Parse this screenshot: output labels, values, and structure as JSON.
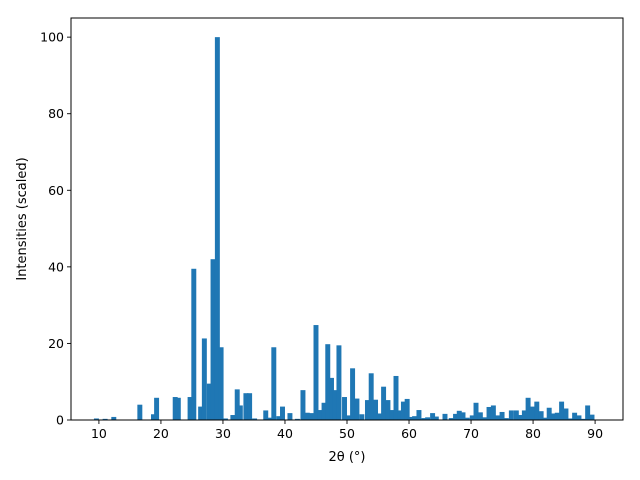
{
  "chart_data": {
    "type": "bar",
    "xlabel": "2θ (°)",
    "ylabel": "Intensities (scaled)",
    "xlim": [
      5.5,
      94.5
    ],
    "ylim": [
      0,
      105
    ],
    "xticks": [
      10,
      20,
      30,
      40,
      50,
      60,
      70,
      80,
      90
    ],
    "xtick_labels": [
      "10",
      "20",
      "30",
      "40",
      "50",
      "60",
      "70",
      "80",
      "90"
    ],
    "yticks": [
      0,
      20,
      40,
      60,
      80,
      100
    ],
    "ytick_labels": [
      "0",
      "20",
      "40",
      "60",
      "80",
      "100"
    ],
    "bar_width": 0.8,
    "bar_color": "#1f77b4",
    "grid": false,
    "series": [
      {
        "x": [
          9.6,
          11.0,
          12.4,
          16.6,
          18.8,
          19.3,
          22.3,
          22.8,
          24.7,
          25.3,
          26.4,
          27.0,
          27.8,
          28.4,
          29.1,
          29.7,
          30.4,
          31.6,
          32.3,
          32.8,
          33.7,
          34.3,
          35.1,
          36.9,
          37.6,
          38.2,
          39.0,
          39.6,
          40.8,
          42.0,
          42.9,
          43.6,
          44.2,
          45.0,
          45.6,
          46.3,
          46.9,
          47.5,
          48.1,
          48.7,
          49.6,
          50.4,
          50.9,
          51.6,
          52.4,
          53.3,
          53.9,
          54.6,
          55.2,
          55.9,
          56.6,
          57.3,
          57.9,
          58.5,
          59.1,
          59.7,
          60.2,
          60.9,
          61.6,
          62.4,
          63.0,
          63.8,
          64.4,
          65.8,
          66.8,
          67.5,
          68.1,
          68.7,
          69.4,
          70.2,
          70.8,
          71.5,
          72.2,
          72.9,
          73.6,
          74.3,
          75.0,
          75.7,
          76.5,
          77.3,
          77.9,
          78.6,
          79.2,
          79.9,
          80.6,
          81.3,
          81.9,
          82.6,
          83.3,
          83.9,
          84.6,
          85.3,
          86.0,
          86.7,
          87.4,
          88.1,
          88.8,
          89.5
        ],
        "values": [
          0.4,
          0.3,
          0.8,
          4.0,
          1.5,
          5.8,
          6.0,
          5.8,
          6.0,
          39.5,
          3.5,
          21.3,
          9.5,
          42.0,
          100.0,
          19.0,
          0.4,
          1.3,
          8.0,
          3.8,
          7.0,
          7.0,
          0.4,
          2.5,
          0.6,
          19.0,
          1.0,
          3.5,
          1.8,
          0.3,
          7.8,
          1.9,
          1.8,
          24.8,
          2.6,
          4.5,
          19.8,
          11.0,
          7.8,
          19.5,
          6.0,
          1.2,
          13.5,
          5.6,
          1.5,
          5.2,
          12.2,
          5.3,
          1.7,
          8.7,
          5.2,
          2.6,
          11.5,
          2.5,
          4.8,
          5.5,
          0.8,
          1.0,
          2.6,
          0.5,
          0.7,
          1.8,
          0.9,
          1.6,
          0.5,
          1.6,
          2.4,
          2.0,
          0.6,
          1.2,
          4.5,
          2.0,
          0.7,
          3.4,
          3.8,
          1.2,
          2.1,
          0.5,
          2.5,
          2.5,
          1.3,
          2.5,
          5.8,
          3.5,
          4.8,
          2.3,
          0.6,
          3.2,
          1.7,
          1.9,
          4.8,
          3.0,
          0.4,
          1.9,
          1.2,
          0.3,
          3.8,
          1.4
        ]
      }
    ]
  }
}
